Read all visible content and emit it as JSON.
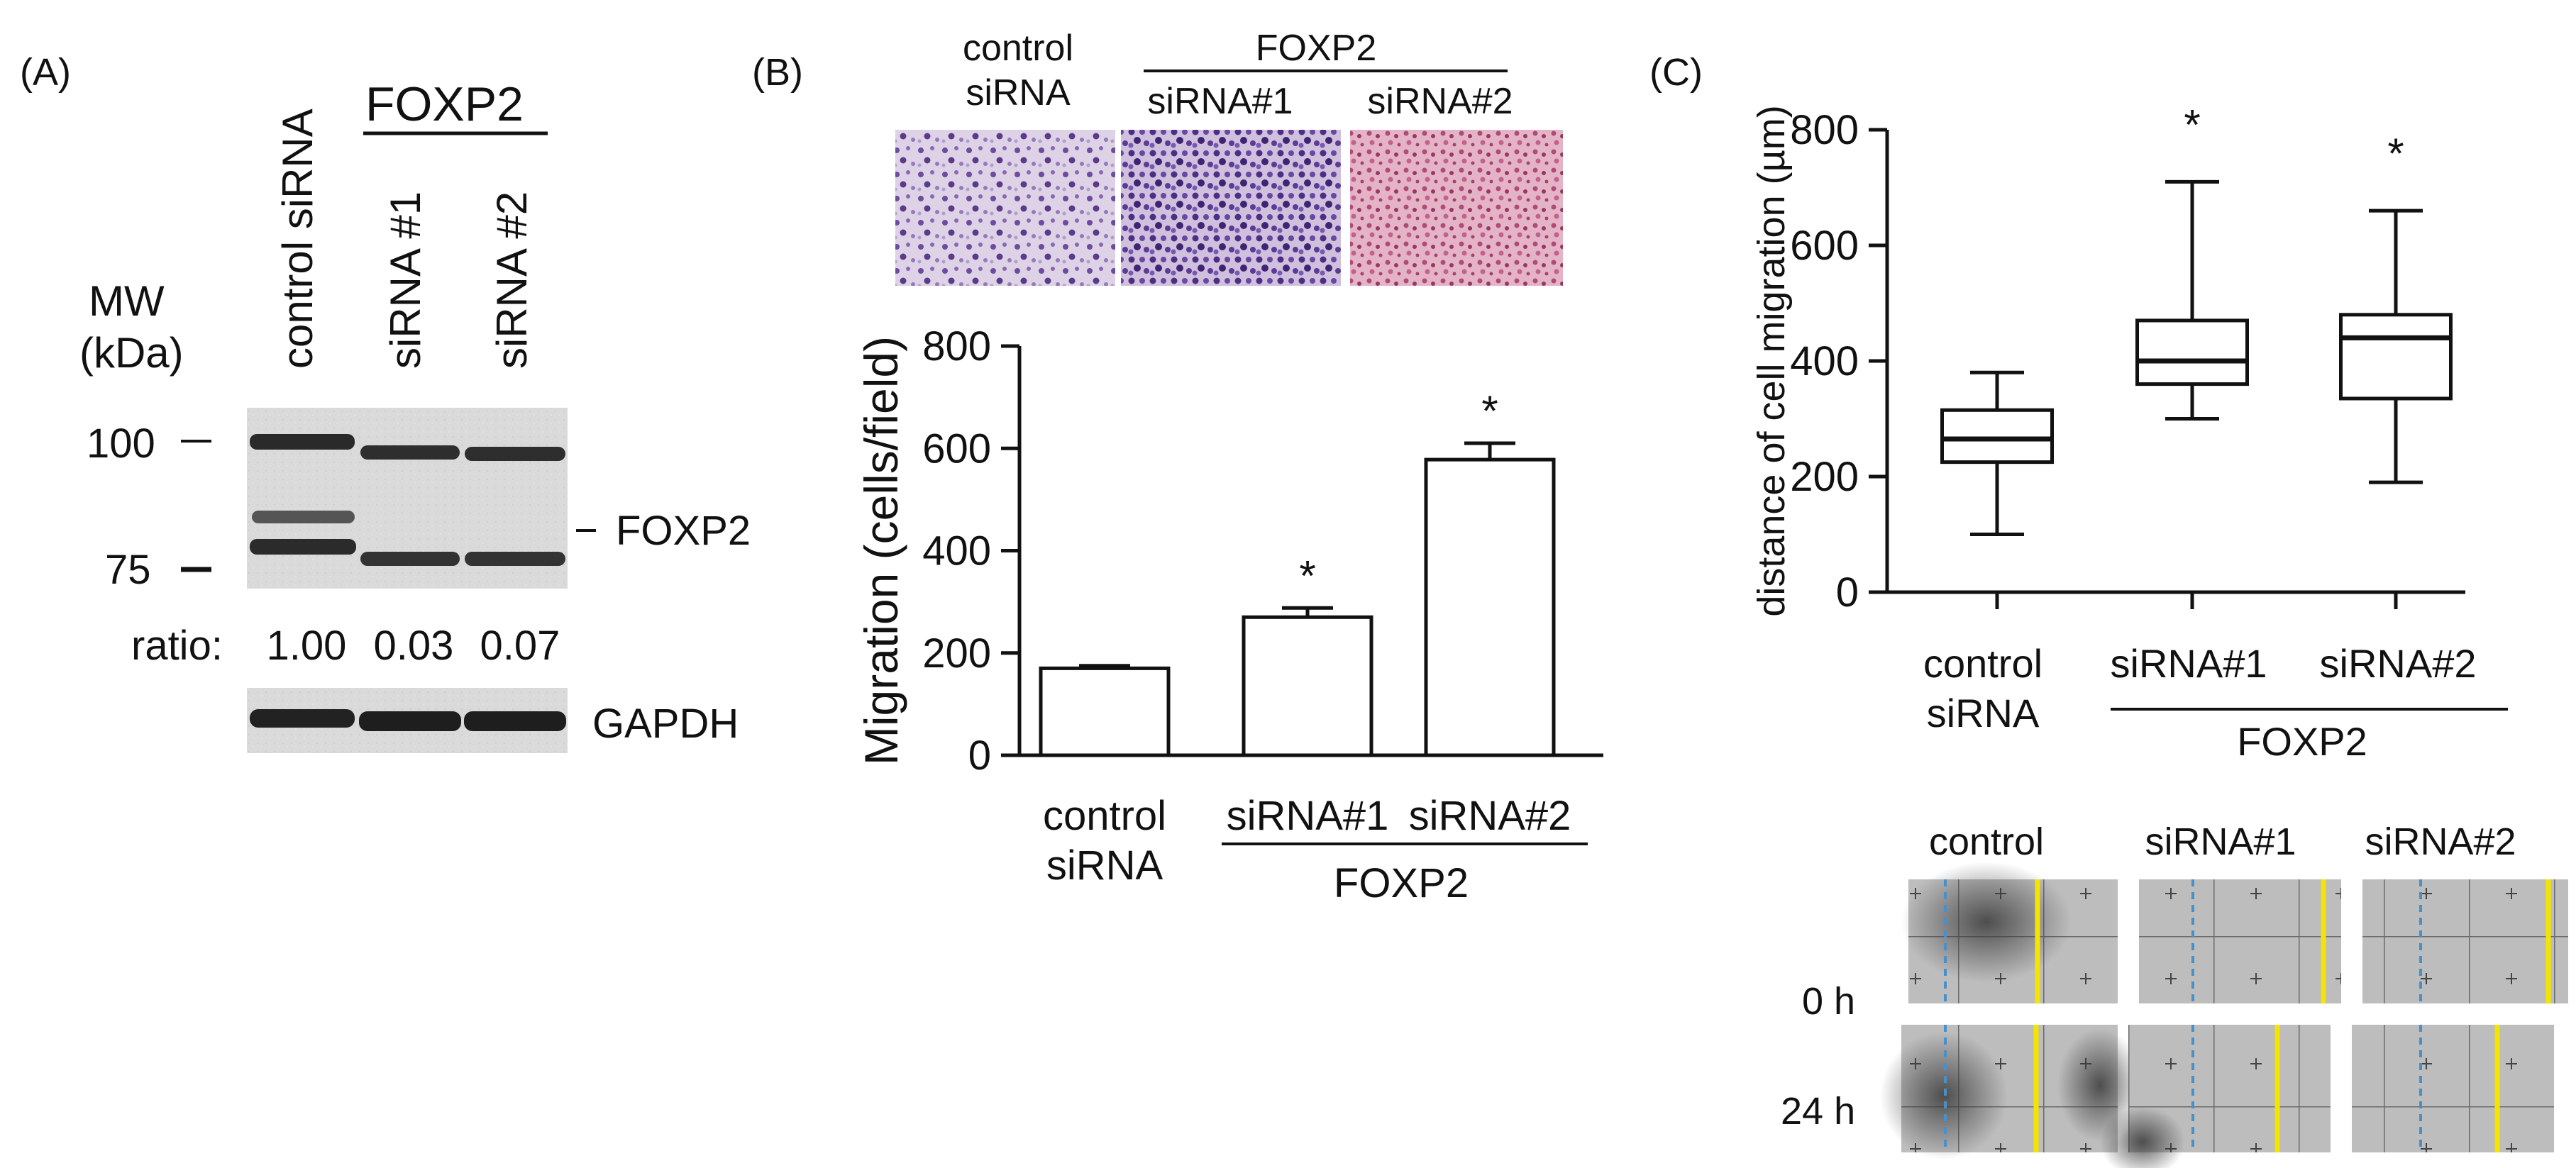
{
  "panel_a": {
    "label": "(A)",
    "mw_label": "MW",
    "kda_label": "(kDa)",
    "group_label": "FOXP2",
    "lanes": [
      "control siRNA",
      "siRNA #1",
      "siRNA #2"
    ],
    "markers": [
      "100",
      "75"
    ],
    "band_label": "FOXP2",
    "ratio_label": "ratio:",
    "ratios": [
      "1.00",
      "0.03",
      "0.07"
    ],
    "loading_label": "GAPDH"
  },
  "panel_b": {
    "label": "(B)",
    "micro_headers": {
      "control": [
        "control",
        "siRNA"
      ],
      "group": "FOXP2",
      "si1": "siRNA#1",
      "si2": "siRNA#2"
    },
    "x_labels": {
      "control": [
        "control",
        "siRNA"
      ],
      "si1": "siRNA#1",
      "si2": "siRNA#2",
      "group": "FOXP2"
    },
    "significance": "*"
  },
  "panel_c": {
    "label": "(C)",
    "x_labels": {
      "control": [
        "control",
        "siRNA"
      ],
      "si1": "siRNA#1",
      "si2": "siRNA#2",
      "group": "FOXP2"
    },
    "significance": "*",
    "scratch": {
      "col_labels": [
        "control",
        "siRNA#1",
        "siRNA#2"
      ],
      "row_labels": [
        "0 h",
        "24 h"
      ]
    }
  },
  "chart_data": [
    {
      "type": "bar",
      "categories": [
        "control siRNA",
        "siRNA#1",
        "siRNA#2"
      ],
      "values": [
        170,
        270,
        578
      ],
      "errors": [
        5,
        18,
        32
      ],
      "significant": [
        false,
        true,
        true
      ],
      "ylabel": "Migration (cells/field)",
      "ylim": [
        0,
        800
      ],
      "yticks": [
        "0",
        "200",
        "400",
        "600",
        "800"
      ]
    },
    {
      "type": "box",
      "categories": [
        "control siRNA",
        "siRNA#1",
        "siRNA#2"
      ],
      "boxes": [
        {
          "min": 100,
          "q1": 225,
          "median": 265,
          "q3": 315,
          "max": 380
        },
        {
          "min": 300,
          "q1": 360,
          "median": 400,
          "q3": 470,
          "max": 710
        },
        {
          "min": 190,
          "q1": 335,
          "median": 440,
          "q3": 480,
          "max": 660
        }
      ],
      "significant": [
        false,
        true,
        true
      ],
      "ylabel": "distance of cell migration (µm)",
      "ylim": [
        0,
        800
      ],
      "yticks": [
        "0",
        "200",
        "400",
        "600",
        "800"
      ]
    }
  ]
}
